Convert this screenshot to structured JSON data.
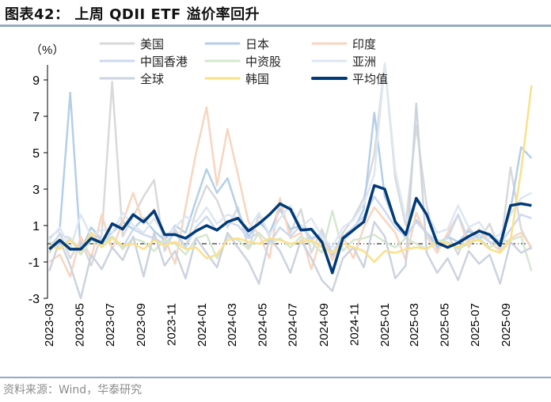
{
  "header": {
    "title": "图表42： 上周 QDII ETF 溢价率回升"
  },
  "footer": {
    "source": "资料来源：Wind，华泰研究"
  },
  "chart_data": {
    "type": "line",
    "title": "图表42： 上周 QDII ETF 溢价率回升",
    "ylabel": "（%）",
    "xlabel": "",
    "ylim": [
      -3,
      10
    ],
    "yticks": [
      -3,
      -1,
      1,
      3,
      5,
      7,
      9
    ],
    "xticks": [
      "2023-03",
      "2023-05",
      "2023-07",
      "2023-09",
      "2023-11",
      "2024-01",
      "2024-03",
      "2024-05",
      "2024-07",
      "2024-09",
      "2024-11",
      "2025-01",
      "2025-03",
      "2025-05",
      "2025-07",
      "2025-09"
    ],
    "reference_line": 0,
    "legend_placement": "top",
    "grid": false,
    "x": [
      "2023-03-03",
      "2023-03-24",
      "2023-04-14",
      "2023-05-05",
      "2023-05-26",
      "2023-06-16",
      "2023-07-07",
      "2023-07-28",
      "2023-08-18",
      "2023-09-08",
      "2023-09-29",
      "2023-10-20",
      "2023-11-10",
      "2023-12-01",
      "2023-12-22",
      "2024-01-12",
      "2024-02-02",
      "2024-02-23",
      "2024-03-15",
      "2024-04-05",
      "2024-04-26",
      "2024-05-17",
      "2024-06-07",
      "2024-06-28",
      "2024-07-19",
      "2024-08-09",
      "2024-08-30",
      "2024-09-20",
      "2024-10-11",
      "2024-11-01",
      "2024-11-22",
      "2024-12-13",
      "2025-01-03",
      "2025-01-24",
      "2025-02-14",
      "2025-03-07",
      "2025-03-28",
      "2025-04-18",
      "2025-05-09",
      "2025-05-30",
      "2025-06-20",
      "2025-07-11",
      "2025-08-01",
      "2025-08-22",
      "2025-09-12",
      "2025-10-03",
      "2025-10-24"
    ],
    "series": [
      {
        "name": "美国",
        "color": "#d9d9d9",
        "width": 2.5,
        "values": [
          -0.5,
          0.6,
          -0.8,
          0.2,
          -1.2,
          0.5,
          8.9,
          0.4,
          1.5,
          2.6,
          3.5,
          -0.4,
          0.8,
          -0.2,
          1.8,
          3.2,
          2.4,
          0.9,
          2.0,
          -0.3,
          1.6,
          0.4,
          2.2,
          0.6,
          1.9,
          -0.5,
          0.8,
          -0.7,
          0.6,
          1.4,
          2.5,
          4.9,
          9.9,
          3.6,
          1.0,
          6.5,
          2.1,
          -0.3,
          0.5,
          -0.6,
          0.9,
          0.2,
          1.1,
          -0.4,
          4.2,
          0.8,
          -0.3
        ]
      },
      {
        "name": "日本",
        "color": "#b4cfe8",
        "width": 2.5,
        "values": [
          0.3,
          0.8,
          8.3,
          -0.4,
          0.9,
          0.2,
          0.6,
          1.2,
          0.8,
          1.4,
          0.7,
          0.2,
          1.0,
          0.6,
          2.4,
          4.1,
          2.8,
          3.6,
          1.8,
          0.4,
          1.2,
          0.6,
          1.9,
          0.8,
          1.0,
          0.3,
          0.5,
          -0.6,
          0.2,
          0.7,
          1.9,
          7.2,
          2.6,
          1.2,
          0.3,
          1.3,
          0.6,
          -0.2,
          0.4,
          0.1,
          0.7,
          0.3,
          0.5,
          0.1,
          1.9,
          5.3,
          4.7
        ]
      },
      {
        "name": "印度",
        "color": "#f8d5c0",
        "width": 2.5,
        "values": [
          -1.0,
          -0.6,
          -1.8,
          0.4,
          -0.8,
          1.6,
          -0.3,
          1.2,
          2.8,
          1.1,
          1.9,
          0.3,
          -1.1,
          2.0,
          5.0,
          7.5,
          3.2,
          6.3,
          3.8,
          1.2,
          0.5,
          -0.8,
          2.5,
          0.3,
          0.6,
          -1.4,
          0.5,
          -0.9,
          0.4,
          -0.8,
          0.9,
          2.0,
          1.3,
          0.6,
          -0.9,
          1.7,
          0.4,
          -0.5,
          0.6,
          1.6,
          -0.2,
          0.8,
          0.1,
          -0.4,
          0.3,
          0.6,
          -0.2
        ]
      },
      {
        "name": "中国香港",
        "color": "#cdd9ef",
        "width": 2.5,
        "values": [
          -0.2,
          0.5,
          0.3,
          -0.4,
          0.6,
          0.2,
          0.4,
          -0.2,
          0.8,
          0.5,
          0.3,
          0.0,
          0.6,
          -0.2,
          0.9,
          1.5,
          0.7,
          1.2,
          1.0,
          0.3,
          0.6,
          0.0,
          0.9,
          0.4,
          1.0,
          0.2,
          0.6,
          -0.5,
          0.4,
          0.9,
          1.5,
          2.6,
          1.8,
          0.9,
          0.4,
          1.2,
          0.6,
          0.1,
          0.3,
          1.6,
          0.2,
          0.5,
          0.1,
          0.0,
          0.8,
          1.6,
          1.4
        ]
      },
      {
        "name": "中资股",
        "color": "#d5e8cf",
        "width": 2.5,
        "values": [
          0.1,
          -0.2,
          0.3,
          -0.6,
          0.2,
          0.0,
          0.4,
          -0.3,
          0.3,
          0.1,
          -0.4,
          0.2,
          0.0,
          -0.6,
          0.3,
          0.5,
          -0.8,
          0.4,
          0.2,
          -0.3,
          0.6,
          0.0,
          0.3,
          -0.2,
          0.4,
          0.1,
          -0.5,
          1.8,
          -0.4,
          0.2,
          0.3,
          0.5,
          0.1,
          -0.2,
          0.3,
          0.0,
          -0.3,
          0.2,
          0.1,
          -0.3,
          0.0,
          0.3,
          -0.2,
          0.1,
          0.2,
          0.4,
          -1.5
        ]
      },
      {
        "name": "亚洲",
        "color": "#dde7f3",
        "width": 2.5,
        "values": [
          0.2,
          0.9,
          -0.3,
          1.6,
          0.4,
          0.8,
          0.6,
          1.7,
          1.0,
          0.6,
          1.4,
          0.4,
          0.9,
          1.5,
          1.2,
          2.0,
          1.1,
          1.6,
          1.4,
          0.8,
          1.7,
          0.5,
          1.4,
          2.1,
          0.9,
          1.4,
          0.4,
          -0.2,
          0.9,
          1.3,
          2.2,
          3.8,
          9.9,
          4.0,
          1.3,
          2.4,
          1.7,
          0.6,
          0.8,
          2.1,
          0.9,
          1.2,
          0.3,
          0.5,
          1.6,
          2.5,
          2.8
        ]
      },
      {
        "name": "全球",
        "color": "#ccd3df",
        "width": 2.5,
        "values": [
          -1.5,
          0.2,
          -1.2,
          -3.0,
          -0.6,
          -1.4,
          -0.2,
          -0.9,
          0.4,
          -1.8,
          0.6,
          -1.2,
          -0.4,
          -1.9,
          0.3,
          -0.5,
          -1.3,
          0.6,
          -0.2,
          -1.0,
          -2.2,
          0.3,
          -0.4,
          -1.6,
          0.2,
          -0.8,
          -2.0,
          -2.6,
          -0.8,
          -0.2,
          -1.3,
          1.2,
          0.4,
          -1.9,
          -1.2,
          7.7,
          -0.5,
          -1.6,
          -0.8,
          -2.0,
          -0.4,
          -1.1,
          -0.6,
          -2.2,
          0.1,
          -0.5,
          -0.2
        ]
      },
      {
        "name": "韩国",
        "color": "#fbe08a",
        "width": 2.5,
        "values": [
          -0.1,
          -0.3,
          0.2,
          -0.4,
          0.6,
          -0.2,
          0.3,
          -0.1,
          0.0,
          -0.3,
          0.2,
          -0.1,
          0.1,
          -0.3,
          -0.2,
          -0.8,
          -0.6,
          0.2,
          0.3,
          0.1,
          0.0,
          0.3,
          0.2,
          0.0,
          0.1,
          0.2,
          -0.2,
          -0.5,
          0.0,
          -0.2,
          -0.4,
          -1.0,
          -0.4,
          -0.5,
          -0.3,
          -0.2,
          -0.3,
          0.1,
          0.0,
          -0.2,
          0.1,
          0.2,
          -0.3,
          -0.5,
          0.2,
          4.0,
          8.7
        ]
      },
      {
        "name": "平均值",
        "color": "#003a78",
        "width": 3.5,
        "values": [
          -0.3,
          0.2,
          -0.3,
          -0.3,
          0.3,
          0.05,
          1.1,
          0.8,
          1.6,
          1.2,
          1.8,
          0.5,
          0.5,
          0.3,
          0.7,
          1.0,
          0.75,
          1.2,
          1.4,
          0.7,
          1.1,
          1.6,
          2.2,
          1.9,
          0.75,
          0.8,
          0.1,
          -1.6,
          0.3,
          0.75,
          1.2,
          3.2,
          3.0,
          1.2,
          0.5,
          2.5,
          1.6,
          0.05,
          -0.2,
          0.05,
          0.4,
          0.7,
          0.5,
          -0.1,
          2.1,
          2.2,
          2.1
        ]
      }
    ]
  }
}
